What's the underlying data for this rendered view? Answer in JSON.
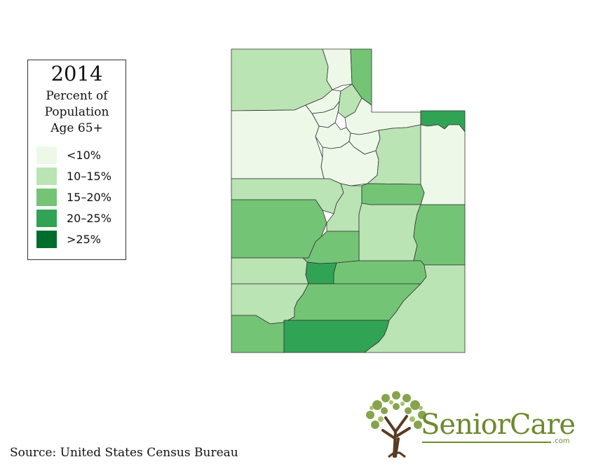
{
  "legend": {
    "year": "2014",
    "subtitle_1": "Percent of",
    "subtitle_2": "Population",
    "subtitle_3": "Age 65+",
    "items": [
      {
        "label": "<10%",
        "color": "#edf8e9"
      },
      {
        "label": "10–15%",
        "color": "#bae4b3"
      },
      {
        "label": "15–20%",
        "color": "#74c476"
      },
      {
        "label": "20–25%",
        "color": "#31a354"
      },
      {
        "label": ">25%",
        "color": "#006d2c"
      }
    ]
  },
  "map": {
    "region": "Utah",
    "counties": [
      {
        "name": "Box Elder",
        "category": "10–15%"
      },
      {
        "name": "Cache",
        "category": "<10%"
      },
      {
        "name": "Rich",
        "category": "15–20%"
      },
      {
        "name": "Weber",
        "category": "<10%"
      },
      {
        "name": "Morgan",
        "category": "10–15%"
      },
      {
        "name": "Davis",
        "category": "<10%"
      },
      {
        "name": "Summit",
        "category": "<10%"
      },
      {
        "name": "Daggett",
        "category": "20–25%"
      },
      {
        "name": "Tooele",
        "category": "<10%"
      },
      {
        "name": "Salt Lake",
        "category": "<10%"
      },
      {
        "name": "Wasatch",
        "category": "<10%"
      },
      {
        "name": "Utah",
        "category": "<10%"
      },
      {
        "name": "Duchesne",
        "category": "10–15%"
      },
      {
        "name": "Uintah",
        "category": "<10%"
      },
      {
        "name": "Juab",
        "category": "10–15%"
      },
      {
        "name": "Millard",
        "category": "15–20%"
      },
      {
        "name": "Sanpete",
        "category": "10–15%"
      },
      {
        "name": "Carbon",
        "category": "15–20%"
      },
      {
        "name": "Emery",
        "category": "10–15%"
      },
      {
        "name": "Grand",
        "category": "15–20%"
      },
      {
        "name": "Sevier",
        "category": "15–20%"
      },
      {
        "name": "Beaver",
        "category": "10–15%"
      },
      {
        "name": "Piute",
        "category": "20–25%"
      },
      {
        "name": "Wayne",
        "category": "15–20%"
      },
      {
        "name": "Iron",
        "category": "10–15%"
      },
      {
        "name": "Garfield",
        "category": "15–20%"
      },
      {
        "name": "San Juan",
        "category": "10–15%"
      },
      {
        "name": "Washington",
        "category": "15–20%"
      },
      {
        "name": "Kane",
        "category": "20–25%"
      }
    ]
  },
  "source": "Source: United States Census Bureau",
  "logo": {
    "name": "SeniorCare",
    "suffix": ".com"
  }
}
